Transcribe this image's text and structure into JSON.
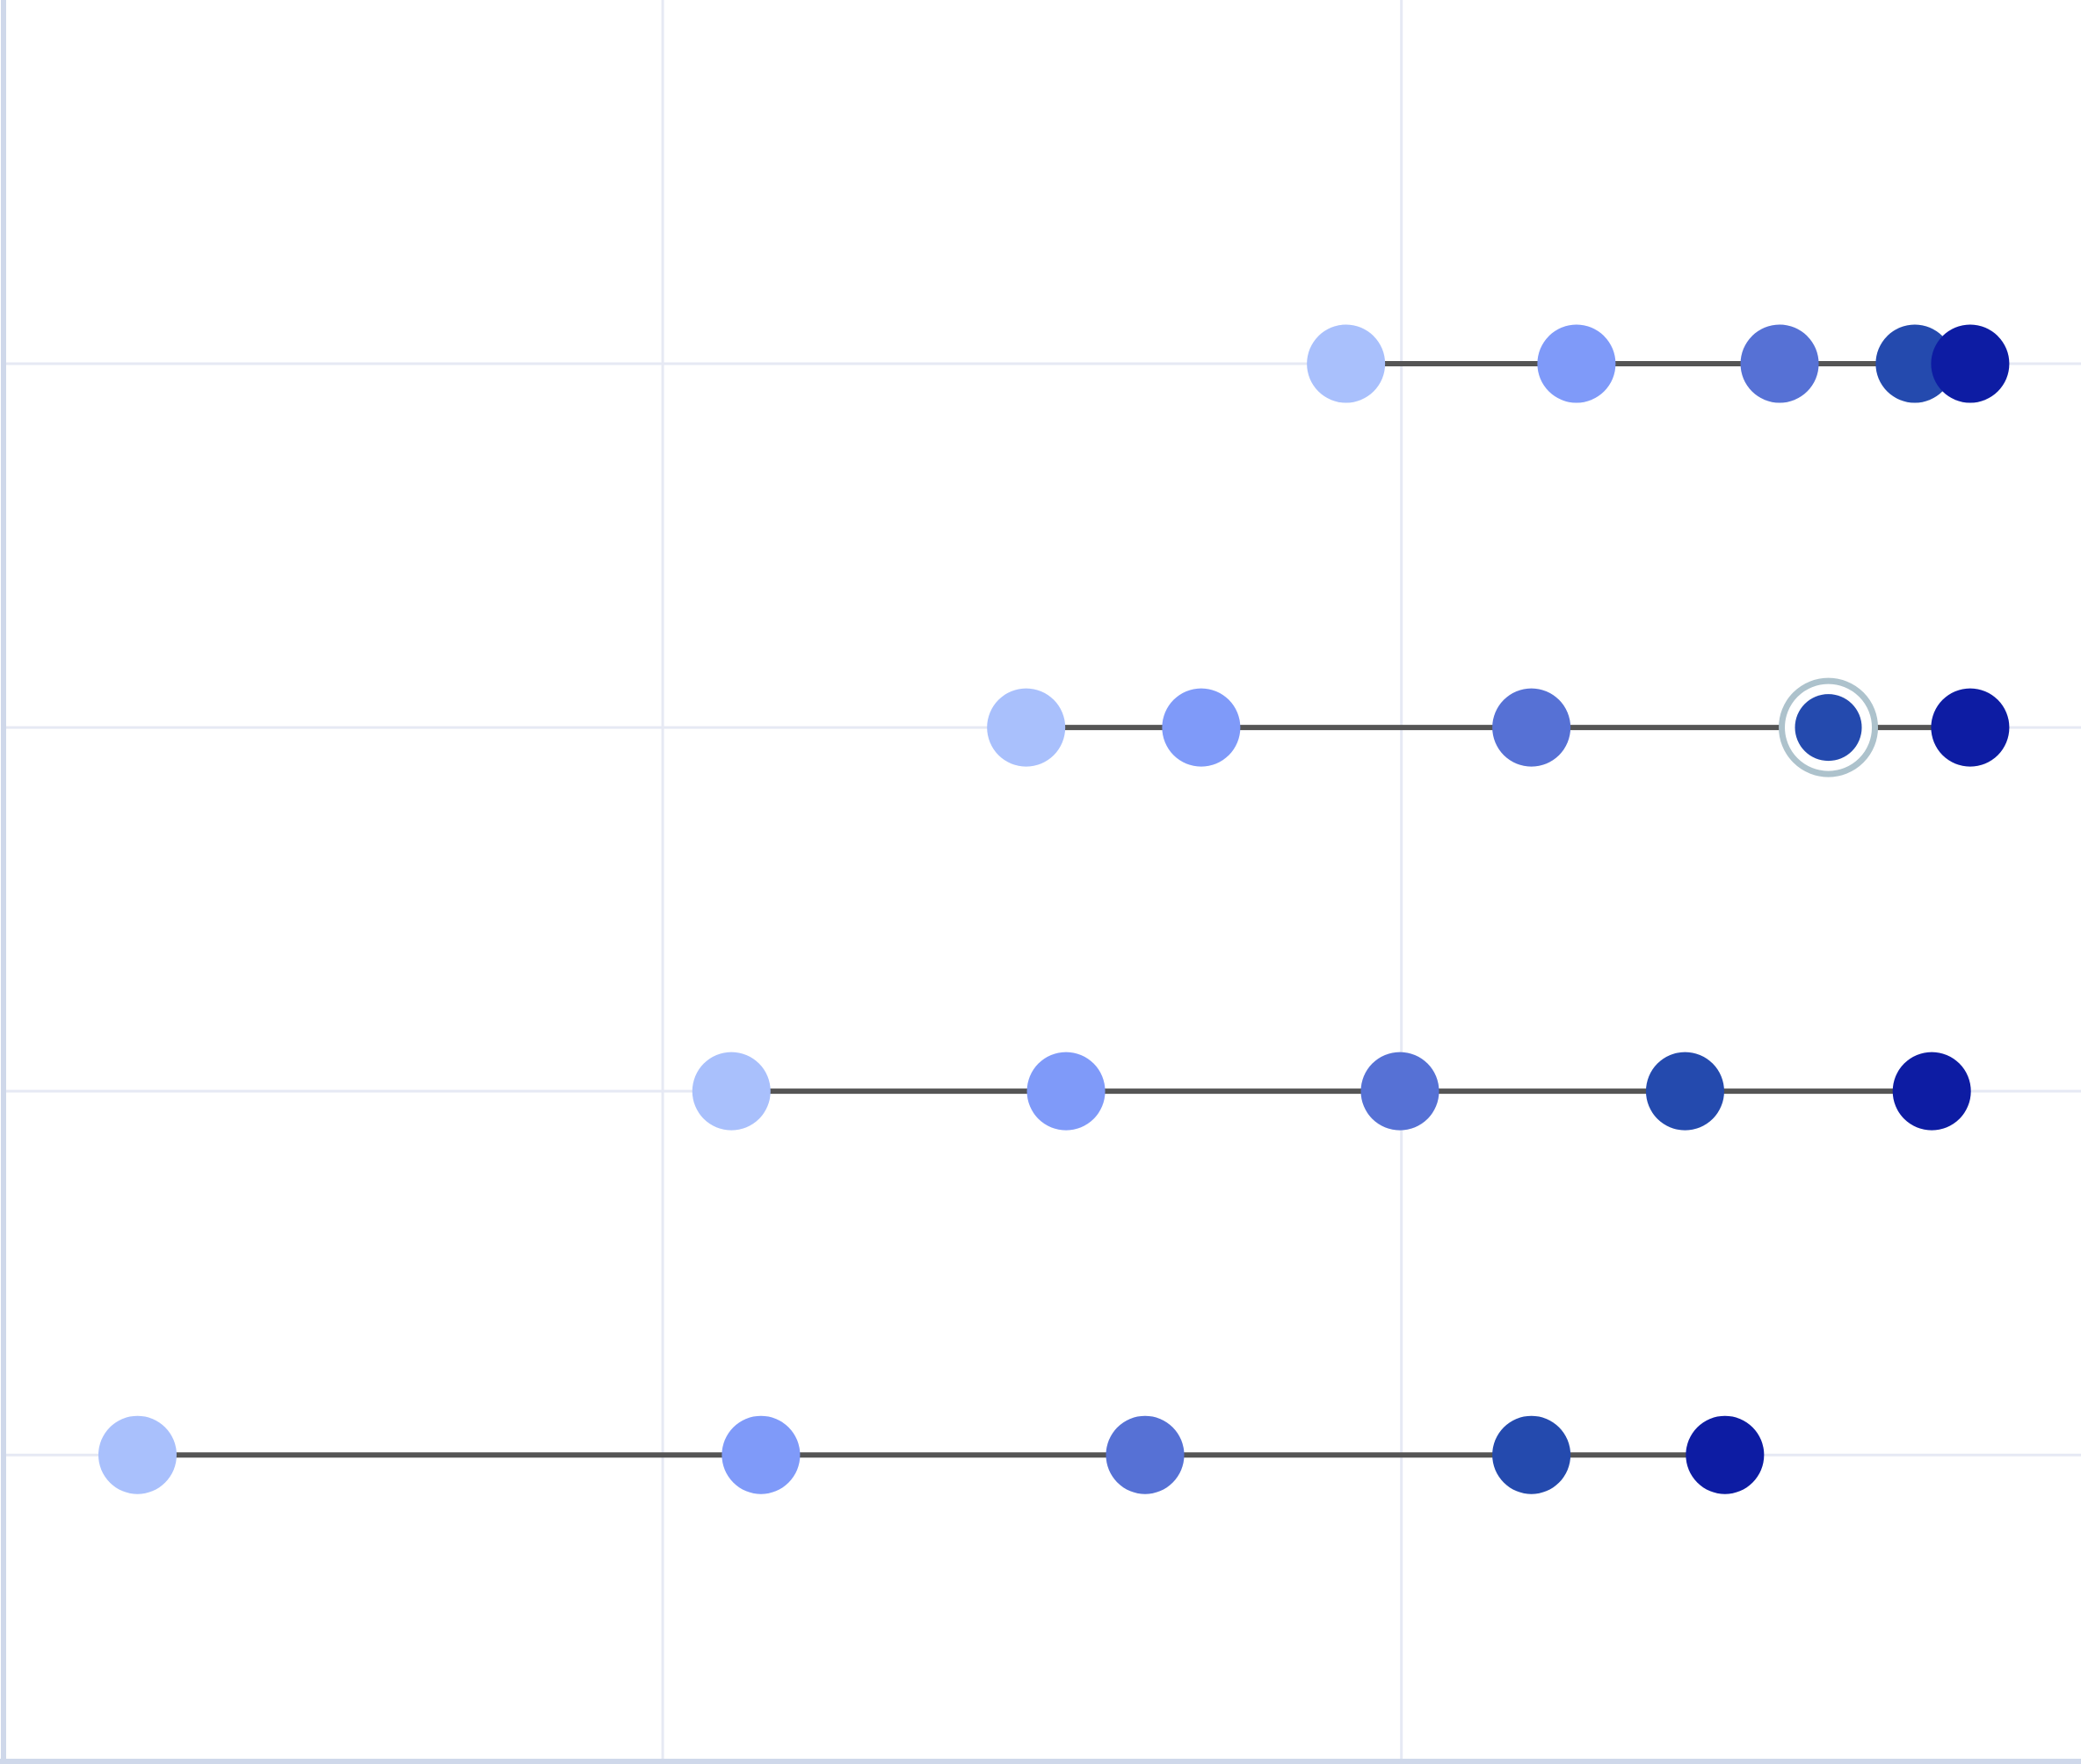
{
  "chart_data": {
    "type": "scatter",
    "subtype": "dot-plot-with-connecting-lines",
    "title": "",
    "xlabel": "",
    "ylabel": "",
    "x_gridlines": [
      1,
      2
    ],
    "xlim": [
      0.11,
      2.92
    ],
    "ylim": [
      0.0,
      4.84
    ],
    "grid": true,
    "legend": "none",
    "rows": [
      {
        "y": 1,
        "x": [
          1.925,
          2.237,
          2.512,
          2.695,
          2.77
        ]
      },
      {
        "y": 2,
        "x": [
          1.492,
          1.729,
          2.176,
          2.578,
          2.77
        ]
      },
      {
        "y": 3,
        "x": [
          1.093,
          1.546,
          1.998,
          2.384,
          2.718
        ]
      },
      {
        "y": 4,
        "x": [
          0.289,
          1.133,
          1.653,
          2.176,
          2.438
        ]
      }
    ],
    "highlighted_point": {
      "row": 2,
      "index": 3
    },
    "point_colors": [
      "#a9c0fc",
      "#7f9af9",
      "#5671d5",
      "#244aae",
      "#0d1ca3"
    ],
    "colors": {
      "connector": "#555555",
      "grid": "#e6e9f4",
      "axis": "#cfd8ea",
      "highlight_ring": "#adc2cc"
    }
  }
}
